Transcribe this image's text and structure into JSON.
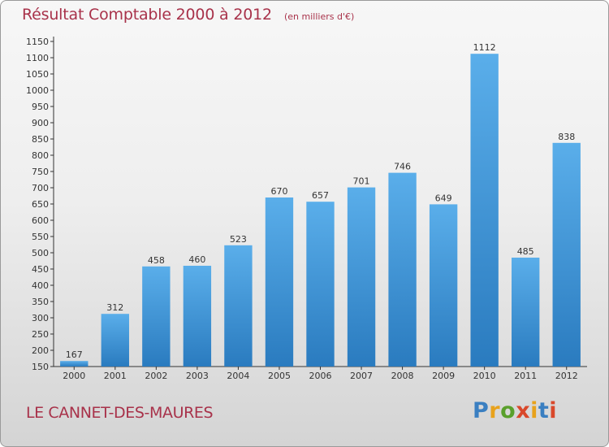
{
  "header": {
    "title": "Résultat Comptable 2000 à 2012",
    "subtitle": "(en milliers d'€)"
  },
  "commune_name": "LE CANNET-DES-MAURES",
  "logo": {
    "letters": [
      "P",
      "r",
      "o",
      "x",
      "i",
      "t",
      "i"
    ],
    "colors": [
      "#3a7fc1",
      "#e8a21c",
      "#5aa02c",
      "#d9482b",
      "#e8a21c",
      "#3a7fc1",
      "#d9482b"
    ]
  },
  "chart_data": {
    "type": "bar",
    "title": "Résultat Comptable 2000 à 2012",
    "subtitle": "(en milliers d'€)",
    "xlabel": "",
    "ylabel": "",
    "categories": [
      "2000",
      "2001",
      "2002",
      "2003",
      "2004",
      "2005",
      "2006",
      "2007",
      "2008",
      "2009",
      "2010",
      "2011",
      "2012"
    ],
    "values": [
      167,
      312,
      458,
      460,
      523,
      670,
      657,
      701,
      746,
      649,
      1112,
      485,
      838
    ],
    "ylim": [
      150,
      1150
    ],
    "ytick_step": 50,
    "grid": false,
    "legend": "none",
    "bar_color_light": "#5aaeea",
    "bar_color_dark": "#2a7bbf"
  }
}
